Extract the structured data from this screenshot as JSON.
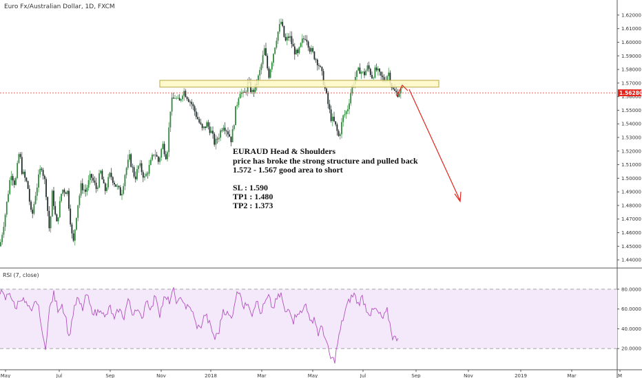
{
  "header": {
    "symbol_line": "Euro Fx/Australian Dollar, 1D, FXCM"
  },
  "annotation": {
    "title": "EURAUD Head & Shoulders",
    "line1": "price has broke the strong structure and pulled back",
    "line2": "1.572 - 1.567 good area to short",
    "sl": "SL : 1.590",
    "tp1": "TP1 : 1.480",
    "tp2": "TP2 : 1.373"
  },
  "rsi": {
    "label": "RSI (7, close)",
    "upper": 80,
    "lower": 20
  },
  "current_price_label": "1.56280",
  "colors": {
    "up": "#2e8b3a",
    "down": "#1f2b2a",
    "zone_fill": "#fff8c4",
    "zone_stroke": "#b9a640",
    "rsi_line": "#b24fbf",
    "rsi_bg": "#f4e9fb",
    "arrow": "#e5231b",
    "price_tag": "#e5231b"
  },
  "chart_data": {
    "type": "candlestick",
    "title": "Euro Fx/Australian Dollar, 1D, FXCM",
    "ylim": [
      1.435,
      1.625
    ],
    "y_ticks": [
      "1.62000",
      "1.61000",
      "1.60000",
      "1.59000",
      "1.58000",
      "1.57000",
      "1.56000",
      "1.55000",
      "1.54000",
      "1.53000",
      "1.52000",
      "1.51000",
      "1.50000",
      "1.49000",
      "1.48000",
      "1.47000",
      "1.46000",
      "1.45000",
      "1.44000"
    ],
    "x_ticks": [
      "May",
      "Jul",
      "Sep",
      "Nov",
      "2018",
      "Mar",
      "May",
      "Jul",
      "Sep",
      "Nov",
      "2019",
      "Mar",
      "M"
    ],
    "path_anchors": [
      [
        0,
        1.45
      ],
      [
        8,
        1.475
      ],
      [
        16,
        1.505
      ],
      [
        22,
        1.495
      ],
      [
        28,
        1.52
      ],
      [
        32,
        1.505
      ],
      [
        40,
        1.495
      ],
      [
        46,
        1.47
      ],
      [
        52,
        1.49
      ],
      [
        60,
        1.51
      ],
      [
        66,
        1.495
      ],
      [
        72,
        1.46
      ],
      [
        76,
        1.49
      ],
      [
        82,
        1.465
      ],
      [
        90,
        1.492
      ],
      [
        98,
        1.49
      ],
      [
        106,
        1.45
      ],
      [
        112,
        1.478
      ],
      [
        118,
        1.495
      ],
      [
        124,
        1.49
      ],
      [
        132,
        1.502
      ],
      [
        140,
        1.492
      ],
      [
        146,
        1.505
      ],
      [
        152,
        1.49
      ],
      [
        160,
        1.503
      ],
      [
        168,
        1.495
      ],
      [
        176,
        1.488
      ],
      [
        182,
        1.505
      ],
      [
        188,
        1.515
      ],
      [
        196,
        1.5
      ],
      [
        202,
        1.51
      ],
      [
        210,
        1.5
      ],
      [
        218,
        1.51
      ],
      [
        224,
        1.52
      ],
      [
        230,
        1.512
      ],
      [
        236,
        1.525
      ],
      [
        242,
        1.515
      ],
      [
        248,
        1.555
      ],
      [
        254,
        1.56
      ],
      [
        260,
        1.555
      ],
      [
        266,
        1.565
      ],
      [
        272,
        1.56
      ],
      [
        278,
        1.555
      ],
      [
        286,
        1.545
      ],
      [
        294,
        1.535
      ],
      [
        300,
        1.54
      ],
      [
        306,
        1.535
      ],
      [
        312,
        1.525
      ],
      [
        318,
        1.532
      ],
      [
        324,
        1.54
      ],
      [
        330,
        1.535
      ],
      [
        336,
        1.528
      ],
      [
        342,
        1.55
      ],
      [
        348,
        1.565
      ],
      [
        354,
        1.56
      ],
      [
        360,
        1.57
      ],
      [
        366,
        1.563
      ],
      [
        372,
        1.568
      ],
      [
        378,
        1.58
      ],
      [
        384,
        1.595
      ],
      [
        390,
        1.575
      ],
      [
        396,
        1.59
      ],
      [
        402,
        1.605
      ],
      [
        408,
        1.615
      ],
      [
        414,
        1.6
      ],
      [
        420,
        1.605
      ],
      [
        426,
        1.595
      ],
      [
        432,
        1.59
      ],
      [
        438,
        1.6
      ],
      [
        444,
        1.605
      ],
      [
        450,
        1.595
      ],
      [
        456,
        1.59
      ],
      [
        462,
        1.585
      ],
      [
        468,
        1.575
      ],
      [
        474,
        1.56
      ],
      [
        480,
        1.545
      ],
      [
        486,
        1.54
      ],
      [
        492,
        1.53
      ],
      [
        498,
        1.545
      ],
      [
        504,
        1.55
      ],
      [
        510,
        1.565
      ],
      [
        516,
        1.575
      ],
      [
        522,
        1.58
      ],
      [
        528,
        1.576
      ],
      [
        534,
        1.582
      ],
      [
        540,
        1.575
      ],
      [
        546,
        1.58
      ],
      [
        552,
        1.575
      ],
      [
        558,
        1.572
      ],
      [
        564,
        1.578
      ],
      [
        570,
        1.565
      ],
      [
        576,
        1.562
      ],
      [
        580,
        1.564
      ],
      [
        584,
        1.566
      ]
    ],
    "zone": [
      1.567,
      1.572
    ],
    "current_price": 1.5628,
    "rsi_ylim": [
      0,
      100
    ],
    "rsi_y_ticks": [
      "80.0000",
      "60.0000",
      "40.0000",
      "20.0000"
    ],
    "rsi_anchors": [
      [
        0,
        78
      ],
      [
        8,
        70
      ],
      [
        14,
        78
      ],
      [
        22,
        60
      ],
      [
        30,
        72
      ],
      [
        38,
        65
      ],
      [
        46,
        55
      ],
      [
        52,
        70
      ],
      [
        58,
        55
      ],
      [
        62,
        30
      ],
      [
        66,
        22
      ],
      [
        72,
        60
      ],
      [
        78,
        75
      ],
      [
        84,
        60
      ],
      [
        90,
        65
      ],
      [
        96,
        50
      ],
      [
        100,
        30
      ],
      [
        106,
        55
      ],
      [
        112,
        70
      ],
      [
        120,
        60
      ],
      [
        126,
        75
      ],
      [
        132,
        60
      ],
      [
        140,
        55
      ],
      [
        146,
        62
      ],
      [
        152,
        50
      ],
      [
        160,
        62
      ],
      [
        166,
        48
      ],
      [
        172,
        60
      ],
      [
        180,
        52
      ],
      [
        186,
        70
      ],
      [
        192,
        55
      ],
      [
        198,
        62
      ],
      [
        206,
        48
      ],
      [
        212,
        70
      ],
      [
        220,
        60
      ],
      [
        226,
        75
      ],
      [
        232,
        55
      ],
      [
        238,
        70
      ],
      [
        246,
        68
      ],
      [
        252,
        78
      ],
      [
        258,
        65
      ],
      [
        264,
        72
      ],
      [
        270,
        62
      ],
      [
        278,
        60
      ],
      [
        284,
        45
      ],
      [
        290,
        40
      ],
      [
        298,
        55
      ],
      [
        304,
        45
      ],
      [
        312,
        30
      ],
      [
        318,
        38
      ],
      [
        324,
        60
      ],
      [
        330,
        55
      ],
      [
        336,
        50
      ],
      [
        342,
        72
      ],
      [
        348,
        80
      ],
      [
        354,
        60
      ],
      [
        360,
        68
      ],
      [
        366,
        55
      ],
      [
        372,
        70
      ],
      [
        378,
        55
      ],
      [
        384,
        65
      ],
      [
        390,
        72
      ],
      [
        396,
        60
      ],
      [
        402,
        70
      ],
      [
        408,
        75
      ],
      [
        414,
        55
      ],
      [
        420,
        62
      ],
      [
        426,
        48
      ],
      [
        432,
        58
      ],
      [
        438,
        55
      ],
      [
        444,
        68
      ],
      [
        450,
        45
      ],
      [
        456,
        52
      ],
      [
        462,
        35
      ],
      [
        468,
        42
      ],
      [
        474,
        25
      ],
      [
        480,
        10
      ],
      [
        486,
        8
      ],
      [
        490,
        25
      ],
      [
        496,
        45
      ],
      [
        502,
        60
      ],
      [
        508,
        70
      ],
      [
        514,
        75
      ],
      [
        520,
        65
      ],
      [
        526,
        72
      ],
      [
        532,
        60
      ],
      [
        538,
        55
      ],
      [
        544,
        60
      ],
      [
        550,
        55
      ],
      [
        556,
        50
      ],
      [
        562,
        58
      ],
      [
        566,
        45
      ],
      [
        570,
        32
      ],
      [
        574,
        30
      ],
      [
        578,
        32
      ]
    ]
  }
}
